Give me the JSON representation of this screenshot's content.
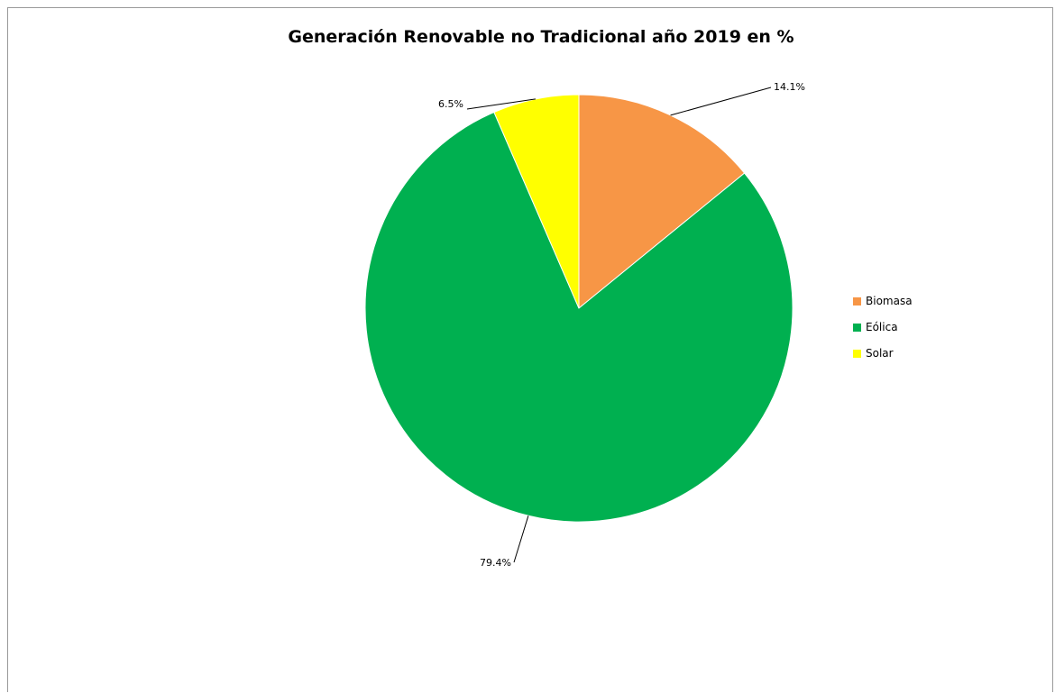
{
  "chart_data": {
    "type": "pie",
    "title": "Generación Renovable no Tradicional año 2019 en %",
    "categories": [
      "Biomasa",
      "Eólica",
      "Solar"
    ],
    "values": [
      14.1,
      79.4,
      6.5
    ],
    "value_labels": [
      "14.1%",
      "79.4%",
      "6.5%"
    ],
    "colors": [
      "#F79646",
      "#00B050",
      "#FFFF00"
    ],
    "legend_position": "right"
  }
}
